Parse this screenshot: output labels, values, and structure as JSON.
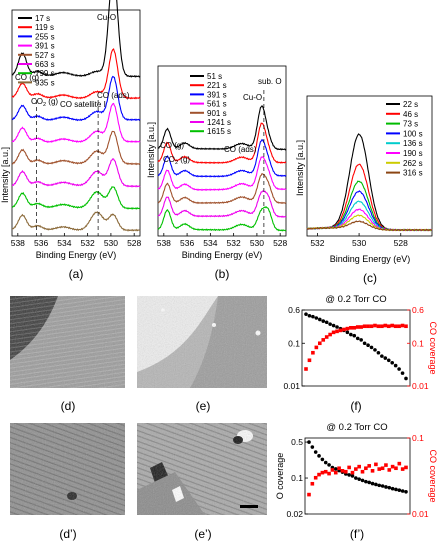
{
  "colors": {
    "s0": "#000000",
    "s1": "#ff0000",
    "s2": "#0000ff",
    "s3": "#ff00ff",
    "s4": "#8b4513",
    "s5": "#ff00ff",
    "s6": "#00cc00",
    "s7": "#8b6a3a",
    "cO": "#000000",
    "cCO": "#ff0000",
    "c_a": [
      "#000000",
      "#ff0000",
      "#0000ff",
      "#ff00ff",
      "#a0522d",
      "#ee00ee",
      "#00c000",
      "#8b6a3a"
    ],
    "c_b": [
      "#000000",
      "#ff0000",
      "#0000ff",
      "#ff00ff",
      "#a0522d",
      "#ee00ee",
      "#00c000"
    ],
    "c_c": [
      "#000000",
      "#ff0000",
      "#00bb00",
      "#0000ff",
      "#00cccc",
      "#ff00ff",
      "#cccc00",
      "#8b4513"
    ]
  },
  "labels": {
    "a": "(a)",
    "b": "(b)",
    "c": "(c)",
    "d": "(d)",
    "e": "(e)",
    "f": "(f)",
    "d2": "(d’)",
    "e2": "(e’)",
    "f2": "(f’)"
  },
  "chart_data": [
    {
      "panel": "a",
      "type": "line",
      "xlabel": "Binding Energy (eV)",
      "ylabel": "Intensity [a.u.]",
      "xlim": [
        538.5,
        527.5
      ],
      "xticks": [
        538,
        536,
        534,
        532,
        530,
        528
      ],
      "series": [
        {
          "name": "17 s"
        },
        {
          "name": "119 s"
        },
        {
          "name": "255 s"
        },
        {
          "name": "391 s"
        },
        {
          "name": "527 s"
        },
        {
          "name": "663 s"
        },
        {
          "name": "799 s"
        },
        {
          "name": "935 s"
        }
      ],
      "annotations": {
        "cuo": "Cu-O",
        "co_gas": "CO (g)",
        "co2": "CO",
        "co2_sub": "2",
        "co2_g": " (g)",
        "co_sat": "CO satellite I",
        "co_ads": "CO (ads)"
      }
    },
    {
      "panel": "b",
      "type": "line",
      "xlabel": "Binding Energy (eV)",
      "ylabel": "Intensity [a.u.]",
      "xlim": [
        538.5,
        527.5
      ],
      "xticks": [
        538,
        536,
        534,
        532,
        530,
        528
      ],
      "series": [
        {
          "name": "51 s"
        },
        {
          "name": "221 s"
        },
        {
          "name": "391 s"
        },
        {
          "name": "561 s"
        },
        {
          "name": "901 s"
        },
        {
          "name": "1241 s"
        },
        {
          "name": "1615 s"
        }
      ],
      "annotations": {
        "sub_o": "sub. O",
        "cuo": "Cu-O",
        "co_gas": "CO (g)",
        "co2": "CO",
        "co2_sub": "2",
        "co2_g": " (g)",
        "co_ads": "CO (ads)"
      }
    },
    {
      "panel": "c",
      "type": "line",
      "xlabel": "Binding Energy (eV)",
      "ylabel": "Intensity [a.u.]",
      "xlim": [
        532.5,
        526.5
      ],
      "xticks": [
        532,
        530,
        528
      ],
      "series": [
        {
          "name": "22 s"
        },
        {
          "name": "46 s"
        },
        {
          "name": "73 s"
        },
        {
          "name": "100 s"
        },
        {
          "name": "136 s"
        },
        {
          "name": "190 s"
        },
        {
          "name": "262 s"
        },
        {
          "name": "316 s"
        }
      ]
    },
    {
      "panel": "f",
      "type": "scatter",
      "title": "@ 0.2 Torr CO",
      "ylabel_right": "CO coverage",
      "yscale": "log",
      "ylim_left": [
        0.01,
        0.6
      ],
      "ylim_right": [
        0.01,
        0.6
      ],
      "yticks_left": [
        "0.6",
        "0.1",
        "0.01"
      ],
      "yticks_right": [
        "0.6",
        "0.1",
        "0.01"
      ],
      "series": [
        {
          "name": "O coverage",
          "x": [
            0,
            1,
            2,
            3,
            4,
            5,
            6,
            7,
            8,
            9,
            10,
            11,
            12,
            13,
            14,
            15,
            16,
            17,
            18,
            19,
            20,
            21,
            22,
            23,
            24,
            25,
            26,
            27,
            28,
            29
          ],
          "y": [
            0.48,
            0.44,
            0.42,
            0.39,
            0.36,
            0.33,
            0.31,
            0.28,
            0.26,
            0.24,
            0.22,
            0.2,
            0.18,
            0.16,
            0.15,
            0.13,
            0.12,
            0.1,
            0.09,
            0.08,
            0.07,
            0.06,
            0.05,
            0.045,
            0.04,
            0.035,
            0.03,
            0.025,
            0.02,
            0.015
          ]
        },
        {
          "name": "CO coverage",
          "x": [
            0,
            1,
            2,
            3,
            4,
            5,
            6,
            7,
            8,
            9,
            10,
            11,
            12,
            13,
            14,
            15,
            16,
            17,
            18,
            19,
            20,
            21,
            22,
            23,
            24,
            25,
            26,
            27,
            28,
            29
          ],
          "y": [
            0.025,
            0.04,
            0.06,
            0.08,
            0.1,
            0.12,
            0.14,
            0.16,
            0.18,
            0.19,
            0.2,
            0.21,
            0.22,
            0.23,
            0.23,
            0.24,
            0.24,
            0.25,
            0.25,
            0.25,
            0.26,
            0.25,
            0.25,
            0.26,
            0.25,
            0.26,
            0.25,
            0.25,
            0.26,
            0.25
          ]
        }
      ]
    },
    {
      "panel": "f2",
      "type": "scatter",
      "title": "@ 0.2 Torr CO",
      "ylabel": "O coverage",
      "ylabel_right": "CO coverage",
      "yscale": "log",
      "ylim_left": [
        0.02,
        0.6
      ],
      "ylim_right": [
        0.01,
        0.1
      ],
      "yticks_left": [
        "0.5",
        "0.1",
        "0.02"
      ],
      "yticks_right": [
        "0.1",
        "0.01"
      ],
      "series": [
        {
          "name": "O coverage",
          "x": [
            0,
            1,
            2,
            3,
            4,
            5,
            6,
            7,
            8,
            9,
            10,
            11,
            12,
            13,
            14,
            15,
            16,
            17,
            18,
            19,
            20,
            21,
            22,
            23,
            24,
            25,
            26,
            27,
            28,
            29
          ],
          "y": [
            0.5,
            0.4,
            0.32,
            0.27,
            0.23,
            0.2,
            0.18,
            0.16,
            0.15,
            0.14,
            0.13,
            0.12,
            0.115,
            0.11,
            0.1,
            0.095,
            0.09,
            0.085,
            0.082,
            0.078,
            0.075,
            0.072,
            0.07,
            0.067,
            0.065,
            0.062,
            0.06,
            0.058,
            0.056,
            0.054
          ]
        },
        {
          "name": "CO coverage",
          "x": [
            0,
            1,
            2,
            3,
            4,
            5,
            6,
            7,
            8,
            9,
            10,
            11,
            12,
            13,
            14,
            15,
            16,
            17,
            18,
            19,
            20,
            21,
            22,
            23,
            24,
            25,
            26,
            27,
            28,
            29
          ],
          "y": [
            0.018,
            0.025,
            0.03,
            0.033,
            0.035,
            0.036,
            0.034,
            0.038,
            0.035,
            0.04,
            0.037,
            0.036,
            0.041,
            0.035,
            0.039,
            0.042,
            0.036,
            0.04,
            0.043,
            0.037,
            0.045,
            0.039,
            0.04,
            0.044,
            0.038,
            0.042,
            0.04,
            0.046,
            0.039,
            0.041
          ]
        }
      ]
    }
  ]
}
